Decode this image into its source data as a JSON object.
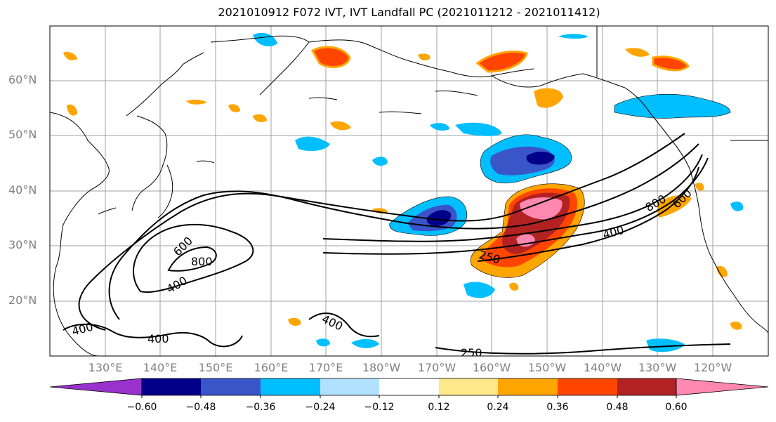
{
  "title": "2021010912 F072 IVT, IVT Landfall PC (2021011212 - 2021011412)",
  "lat_labels": [
    "60°N",
    "50°N",
    "40°N",
    "30°N",
    "20°N"
  ],
  "lon_labels": [
    "130°E",
    "140°E",
    "150°E",
    "160°E",
    "170°E",
    "180°W",
    "170°W",
    "160°W",
    "150°W",
    "140°W",
    "130°W",
    "120°W"
  ],
  "colorbar": {
    "ticks": [
      "−0.60",
      "−0.48",
      "−0.36",
      "−0.24",
      "−0.12",
      "0.12",
      "0.24",
      "0.36",
      "0.48",
      "0.60"
    ],
    "colors": [
      "#9932cc",
      "#00008b",
      "#3a55c8",
      "#00bfff",
      "#b0e2ff",
      "#ffffff",
      "#ffe88a",
      "#ffa500",
      "#ff4500",
      "#b22222",
      "#ff88b0"
    ]
  },
  "contour_labels": [
    "600",
    "800",
    "400",
    "400",
    "400",
    "400",
    "250",
    "250",
    "400",
    "800",
    "600"
  ]
}
